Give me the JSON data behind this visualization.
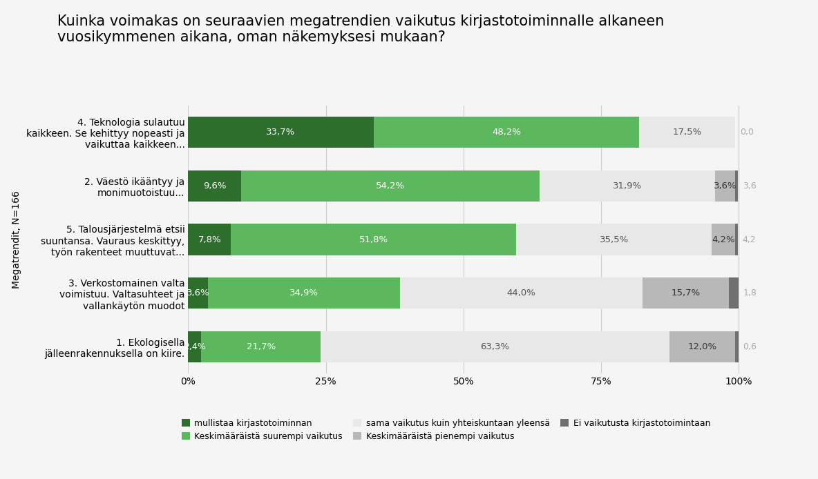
{
  "title": "Kuinka voimakas on seuraavien megatrendien vaikutus kirjastotoiminnalle alkaneen\nvuosikymmenen aikana, oman näkemyksesi mukaan?",
  "ylabel": "Megatrendit, N=166",
  "categories": [
    "1. Ekologisella\njälleenrakennuksella on kiire.",
    "3. Verkostomainen valta\nvoimistuu. Valtasuhteet ja\nvallankäytön muodot",
    "5. Talousjärjestelmä etsii\nsuuntansa. Vauraus keskittyy,\ntyön rakenteet muuttuvat...",
    "2. Väestö ikääntyy ja\nmonimuotoistuu...",
    "4. Teknologia sulautuu\nkaikkeen. Se kehittyy nopeasti ja\nvaikuttaa kaikkeen..."
  ],
  "series": {
    "mullistaa": [
      2.4,
      3.6,
      7.8,
      9.6,
      33.7
    ],
    "keskimaaraista_suurempi": [
      21.7,
      34.9,
      51.8,
      54.2,
      48.2
    ],
    "sama_vaikutus": [
      63.3,
      44.0,
      35.5,
      31.9,
      17.5
    ],
    "keskimaaraista_pienempi": [
      12.0,
      15.7,
      4.2,
      3.6,
      0.0
    ],
    "ei_vaikutusta": [
      0.6,
      1.8,
      0.6,
      0.6,
      0.0
    ]
  },
  "outside_labels": [
    "0,6",
    "1,8",
    "4,2",
    "3,6",
    "0,0"
  ],
  "colors": {
    "mullistaa": "#2d6e2d",
    "keskimaaraista_suurempi": "#5cb85c",
    "sama_vaikutus": "#e8e8e8",
    "keskimaaraista_pienempi": "#b8b8b8",
    "ei_vaikutusta": "#707070"
  },
  "legend_labels": [
    "mullistaa kirjastotoiminnan",
    "Keskimääräistä suurempi vaikutus",
    "sama vaikutus kuin yhteiskuntaan yleensä",
    "Keskimääräistä pienempi vaikutus",
    "Ei vaikutusta kirjastotoimintaan"
  ],
  "background_color": "#f5f5f5",
  "title_fontsize": 15,
  "tick_fontsize": 10,
  "label_fontsize": 9.5
}
